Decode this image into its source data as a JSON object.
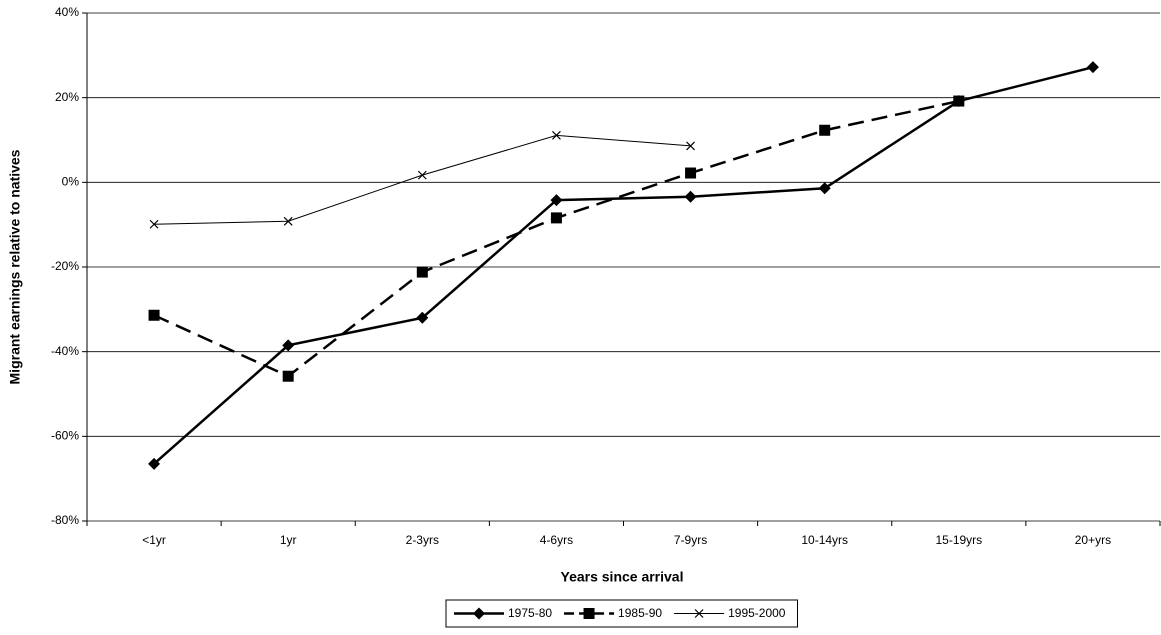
{
  "chart_data": {
    "type": "line",
    "y_label": "Migrant earnings relative to natives",
    "x_label": "Years since arrival",
    "categories": [
      "<1yr",
      "1yr",
      "2-3yrs",
      "4-6yrs",
      "7-9yrs",
      "10-14yrs",
      "15-19yrs",
      "20+yrs"
    ],
    "series": [
      {
        "name": "1975-80",
        "color": "#000000",
        "marker": "diamond",
        "dashed": false,
        "width": 2.5,
        "values": [
          -66.5,
          -38.5,
          -32,
          -4.2,
          -3.4,
          -1.4,
          19.2,
          27.2
        ]
      },
      {
        "name": "1985-90",
        "color": "#000000",
        "marker": "square",
        "dashed": true,
        "width": 2.5,
        "values": [
          -31.4,
          -45.8,
          -21.2,
          -8.4,
          2.2,
          12.3,
          19.2,
          null
        ]
      },
      {
        "name": "1995-2000",
        "color": "#000000",
        "marker": "x",
        "dashed": false,
        "width": 1,
        "values": [
          -9.9,
          -9.2,
          1.7,
          11.1,
          8.6,
          null,
          null,
          null
        ]
      }
    ],
    "ylim": [
      -80,
      40
    ],
    "yticks": [
      {
        "value": -80,
        "label": "-80%"
      },
      {
        "value": -60,
        "label": "-60%"
      },
      {
        "value": -40,
        "label": "-40%"
      },
      {
        "value": -20,
        "label": "-20%"
      },
      {
        "value": 0,
        "label": "0%"
      },
      {
        "value": 20,
        "label": "20%"
      },
      {
        "value": 40,
        "label": "40%"
      }
    ],
    "grid": true,
    "legend": "bottom"
  }
}
